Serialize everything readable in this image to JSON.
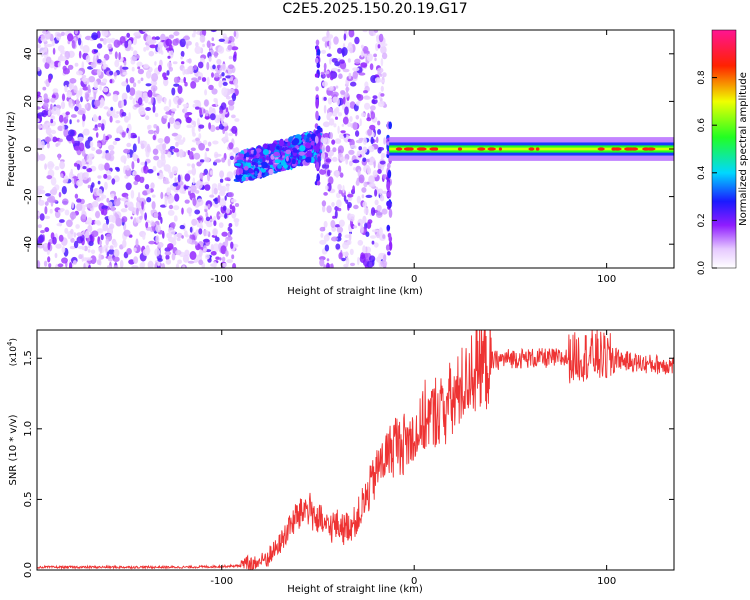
{
  "title": "C2E5.2025.150.20.19.G17",
  "chart_data": [
    {
      "type": "heatmap",
      "xlabel": "Height of straight line (km)",
      "ylabel": "Frequency (Hz)",
      "xlim": [
        -196,
        135
      ],
      "ylim": [
        -50,
        50
      ],
      "x_ticks": [
        -100,
        0,
        100
      ],
      "x_tick_labels": [
        "-100",
        "0",
        "100"
      ],
      "y_ticks": [
        -40,
        -20,
        0,
        20,
        40
      ],
      "y_tick_labels": [
        "-40",
        "-20",
        "0",
        "20",
        "40"
      ],
      "colorbar": {
        "label": "Normalized spectral amplitude",
        "range": [
          0,
          1
        ],
        "ticks": [
          0.0,
          0.2,
          0.4,
          0.6,
          0.8
        ],
        "tick_labels": [
          "0.0",
          "0.2",
          "0.4",
          "0.6",
          "0.8"
        ]
      },
      "regions": [
        {
          "name": "noise",
          "x": [
            -196,
            -92
          ],
          "freq": [
            -50,
            50
          ],
          "amplitude": [
            0.05,
            0.25
          ]
        },
        {
          "name": "ramp",
          "x": [
            -92,
            -48
          ],
          "freq_center_start": -8,
          "freq_center_end": 2,
          "half_width": 6,
          "amplitude": [
            0.1,
            0.4
          ]
        },
        {
          "name": "spike",
          "x": -50,
          "freq": [
            -15,
            45
          ],
          "amplitude": [
            0.1,
            0.3
          ]
        },
        {
          "name": "noise",
          "x": [
            -48,
            -15
          ],
          "freq": [
            -50,
            50
          ],
          "amplitude": [
            0.05,
            0.25
          ]
        },
        {
          "name": "spike",
          "x": -13,
          "freq": [
            -45,
            10
          ],
          "amplitude": [
            0.1,
            0.3
          ]
        },
        {
          "name": "carrier",
          "x": [
            -13,
            135
          ],
          "freq_center": 0,
          "half_width": 5,
          "amplitude": [
            0.4,
            1.0
          ]
        }
      ],
      "grid": false
    },
    {
      "type": "line",
      "xlabel": "Height of straight line (km)",
      "ylabel": "SNR (10 * v/v)",
      "y_scale_label": "(x10",
      "y_scale_exp": "4",
      "xlim": [
        -196,
        135
      ],
      "ylim": [
        0,
        1.7
      ],
      "x_ticks": [
        -100,
        0,
        100
      ],
      "x_tick_labels": [
        "-100",
        "0",
        "100"
      ],
      "y_ticks": [
        0.0,
        0.5,
        1.0,
        1.5
      ],
      "y_tick_labels": [
        "0.0",
        "0.5",
        "1.0",
        "1.5"
      ],
      "series": [
        {
          "color": "#ee3333",
          "x": [
            -196,
            -180,
            -160,
            -140,
            -120,
            -100,
            -90,
            -85,
            -80,
            -75,
            -70,
            -65,
            -60,
            -55,
            -50,
            -45,
            -40,
            -35,
            -30,
            -25,
            -20,
            -15,
            -10,
            -5,
            0,
            5,
            10,
            15,
            20,
            25,
            30,
            35,
            40,
            50,
            60,
            70,
            80,
            90,
            95,
            100,
            105,
            110,
            120,
            135
          ],
          "y": [
            0.02,
            0.02,
            0.02,
            0.02,
            0.02,
            0.025,
            0.03,
            0.04,
            0.06,
            0.1,
            0.18,
            0.3,
            0.4,
            0.45,
            0.35,
            0.3,
            0.32,
            0.3,
            0.35,
            0.5,
            0.7,
            0.8,
            0.9,
            0.9,
            0.95,
            1.05,
            1.1,
            1.15,
            1.2,
            1.3,
            1.4,
            1.45,
            1.48,
            1.5,
            1.5,
            1.5,
            1.5,
            1.52,
            1.52,
            1.5,
            1.5,
            1.48,
            1.46,
            1.45
          ]
        }
      ],
      "grid": false
    }
  ]
}
